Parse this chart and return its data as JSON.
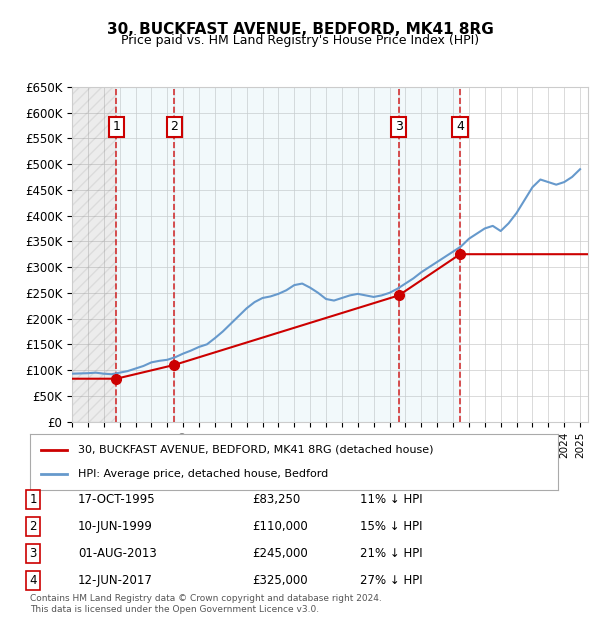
{
  "title": "30, BUCKFAST AVENUE, BEDFORD, MK41 8RG",
  "subtitle": "Price paid vs. HM Land Registry's House Price Index (HPI)",
  "xlabel": "",
  "ylabel": "",
  "ylim": [
    0,
    650000
  ],
  "yticks": [
    0,
    50000,
    100000,
    150000,
    200000,
    250000,
    300000,
    350000,
    400000,
    450000,
    500000,
    550000,
    600000,
    650000
  ],
  "xlim_start": 1993.0,
  "xlim_end": 2025.5,
  "transactions": [
    {
      "num": 1,
      "date_label": "17-OCT-1995",
      "year": 1995.79,
      "price": 83250,
      "pct": "11% ↓ HPI"
    },
    {
      "num": 2,
      "date_label": "10-JUN-1999",
      "year": 1999.44,
      "price": 110000,
      "pct": "15% ↓ HPI"
    },
    {
      "num": 3,
      "date_label": "01-AUG-2013",
      "year": 2013.58,
      "price": 245000,
      "pct": "21% ↓ HPI"
    },
    {
      "num": 4,
      "date_label": "12-JUN-2017",
      "year": 2017.44,
      "price": 325000,
      "pct": "27% ↓ HPI"
    }
  ],
  "legend_line1": "30, BUCKFAST AVENUE, BEDFORD, MK41 8RG (detached house)",
  "legend_line2": "HPI: Average price, detached house, Bedford",
  "footer": "Contains HM Land Registry data © Crown copyright and database right 2024.\nThis data is licensed under the Open Government Licence v3.0.",
  "red_color": "#cc0000",
  "blue_color": "#6699cc",
  "hatch_color": "#cccccc",
  "grid_color": "#cccccc",
  "background_color": "#ffffff"
}
